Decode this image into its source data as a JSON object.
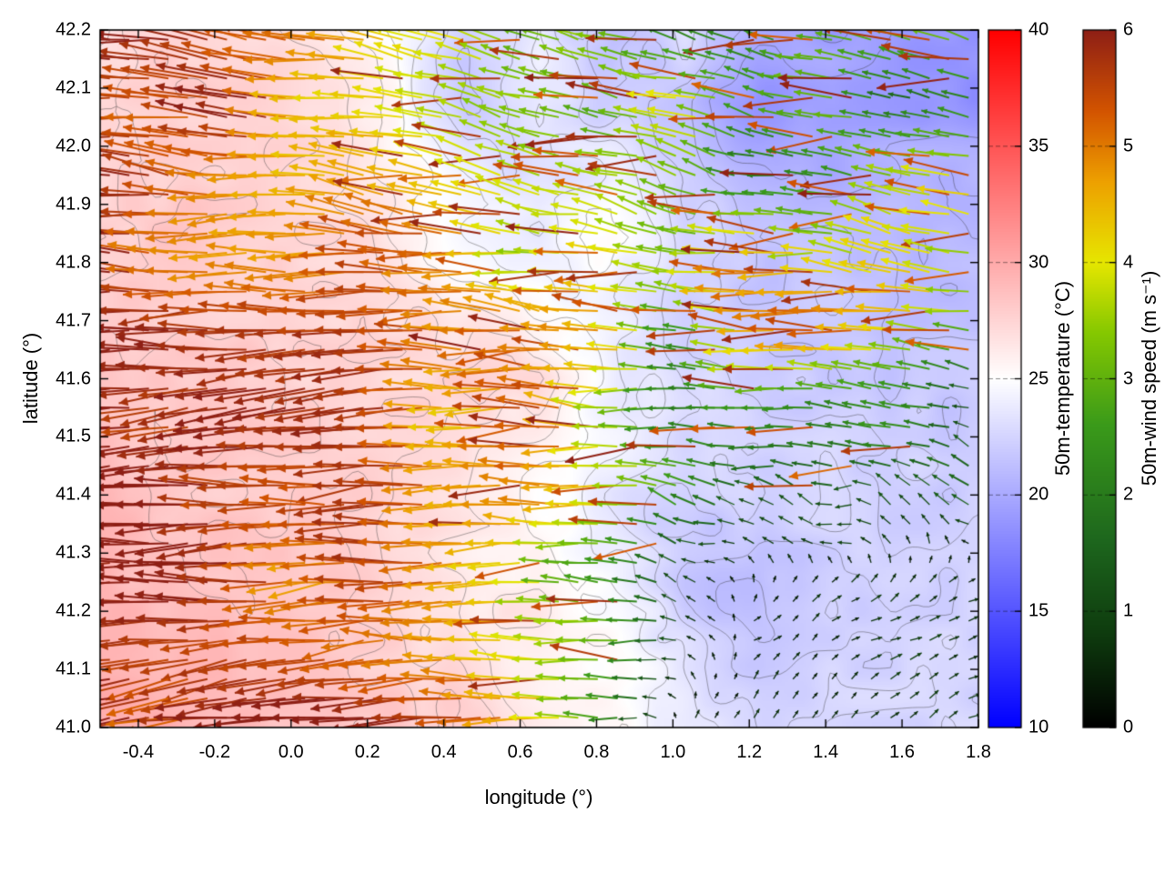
{
  "figure": {
    "background": "#ffffff"
  },
  "chart_data": {
    "type": "quiver",
    "description": "Wind vector field (arrows colored by 50m wind speed) over a 50m temperature heatmap with thin gray terrain contour lines",
    "xlabel": "longitude (°)",
    "ylabel": "latitude (°)",
    "x_range": [
      -0.5,
      1.8
    ],
    "y_range": [
      41.0,
      42.2
    ],
    "x_ticks": [
      -0.4,
      -0.2,
      0.0,
      0.2,
      0.4,
      0.6,
      0.8,
      1.0,
      1.2,
      1.4,
      1.6,
      1.8
    ],
    "y_ticks": [
      41.0,
      41.1,
      41.2,
      41.3,
      41.4,
      41.5,
      41.6,
      41.7,
      41.8,
      41.9,
      42.0,
      42.1,
      42.2
    ],
    "colorbars": [
      {
        "label": "50m-temperature (°C)",
        "range": [
          10,
          40
        ],
        "ticks": [
          10,
          15,
          20,
          25,
          30,
          35,
          40
        ],
        "stops": [
          [
            10,
            "#0000ff"
          ],
          [
            25,
            "#ffffff"
          ],
          [
            40,
            "#ff0000"
          ]
        ]
      },
      {
        "label": "50m-wind speed (m s⁻¹)",
        "range": [
          0,
          6
        ],
        "ticks": [
          0,
          1,
          2,
          3,
          4,
          5,
          6
        ],
        "stops": [
          [
            0,
            "#000000"
          ],
          [
            0.8,
            "#0e3b0e"
          ],
          [
            1.6,
            "#1d661d"
          ],
          [
            2.6,
            "#3a9a1a"
          ],
          [
            3.4,
            "#86c800"
          ],
          [
            4.0,
            "#e6e600"
          ],
          [
            4.7,
            "#eda000"
          ],
          [
            5.3,
            "#d35400"
          ],
          [
            6,
            "#8e1f15"
          ]
        ]
      }
    ],
    "temperature_grid": {
      "units": "°C",
      "rows_from_lat": 42.2,
      "rows_to_lat": 41.0,
      "cols_from_lon": -0.5,
      "cols_to_lon": 1.8,
      "values": [
        [
          27.0,
          27.5,
          27.0,
          26.5,
          25.0,
          22.0,
          24.0,
          21.0,
          23.0,
          20.0,
          19.0,
          18.5,
          19.0
        ],
        [
          27.5,
          28.0,
          27.5,
          26.5,
          25.5,
          21.5,
          23.5,
          22.0,
          21.0,
          19.0,
          20.0,
          19.0,
          18.5
        ],
        [
          28.0,
          28.0,
          27.5,
          27.0,
          26.0,
          24.0,
          22.5,
          24.0,
          22.0,
          21.0,
          20.0,
          21.0,
          20.5
        ],
        [
          28.0,
          28.5,
          28.0,
          27.0,
          26.5,
          25.0,
          24.5,
          25.0,
          23.0,
          22.0,
          21.5,
          21.0,
          21.0
        ],
        [
          28.0,
          28.0,
          27.5,
          27.5,
          27.0,
          26.0,
          25.5,
          24.0,
          22.5,
          22.0,
          22.0,
          21.5,
          21.5
        ],
        [
          28.5,
          28.0,
          28.0,
          27.5,
          27.0,
          27.5,
          26.5,
          24.0,
          23.0,
          22.5,
          22.0,
          22.0,
          22.0
        ],
        [
          28.5,
          28.5,
          28.0,
          28.0,
          27.5,
          27.0,
          25.5,
          24.5,
          23.0,
          22.5,
          22.5,
          22.5,
          22.0
        ],
        [
          29.0,
          28.5,
          28.5,
          28.0,
          27.5,
          26.5,
          25.5,
          24.0,
          22.0,
          21.5,
          22.5,
          22.5,
          22.5
        ],
        [
          29.0,
          29.0,
          28.5,
          28.0,
          27.5,
          26.5,
          26.0,
          24.5,
          21.5,
          21.0,
          22.5,
          22.5,
          22.5
        ],
        [
          29.5,
          29.0,
          29.0,
          28.5,
          27.5,
          27.0,
          26.0,
          25.0,
          23.0,
          22.0,
          22.5,
          22.5,
          22.5
        ],
        [
          29.5,
          29.5,
          29.0,
          28.5,
          28.0,
          27.5,
          26.5,
          25.5,
          23.5,
          22.5,
          22.5,
          22.5,
          22.5
        ]
      ]
    },
    "wind_grid": {
      "units": "m s⁻¹",
      "u": [
        [
          -5.6,
          -5.6,
          -5.4,
          -5.2,
          -4.5,
          -3.5,
          -3.0,
          -4.0,
          -2.5,
          -2.0,
          -2.8,
          -3.0,
          -2.5
        ],
        [
          -5.6,
          -5.6,
          -5.4,
          -5.0,
          -4.0,
          -3.2,
          -3.5,
          -3.0,
          -3.5,
          -2.5,
          -2.2,
          -2.0,
          -2.5
        ],
        [
          -5.7,
          -5.6,
          -5.5,
          -5.2,
          -4.5,
          -3.5,
          -3.0,
          -2.5,
          -3.0,
          -2.0,
          -2.5,
          -3.5,
          -3.0
        ],
        [
          -5.7,
          -5.7,
          -5.5,
          -5.3,
          -5.0,
          -4.0,
          -3.5,
          -3.0,
          -2.5,
          -3.5,
          -4.5,
          -4.0,
          -3.5
        ],
        [
          -5.7,
          -5.7,
          -5.6,
          -5.4,
          -5.0,
          -4.5,
          -3.8,
          -3.5,
          -3.0,
          -4.0,
          -5.0,
          -4.5,
          -4.0
        ],
        [
          -5.8,
          -5.7,
          -5.6,
          -5.5,
          -5.2,
          -5.0,
          -4.0,
          -3.5,
          -3.0,
          -3.5,
          -3.0,
          -2.5,
          -2.0
        ],
        [
          -5.8,
          -5.8,
          -5.7,
          -5.5,
          -5.3,
          -5.0,
          -4.5,
          -3.5,
          -2.5,
          -2.0,
          -2.5,
          -2.0,
          -1.5
        ],
        [
          -5.8,
          -5.8,
          -5.7,
          -5.6,
          -5.4,
          -5.0,
          -4.5,
          -3.0,
          -1.5,
          -1.0,
          -1.5,
          -1.0,
          -0.8
        ],
        [
          -5.9,
          -5.8,
          -5.8,
          -5.6,
          -5.4,
          -5.2,
          -4.5,
          -3.0,
          -1.0,
          0.3,
          0.5,
          0.5,
          0.6
        ],
        [
          -5.9,
          -5.9,
          -5.8,
          -5.7,
          -5.5,
          -5.0,
          -4.0,
          -2.5,
          -0.5,
          0.4,
          0.5,
          0.6,
          0.6
        ],
        [
          -5.9,
          -5.9,
          -5.8,
          -5.7,
          -5.5,
          -5.2,
          -4.5,
          -2.0,
          0.3,
          0.5,
          0.5,
          0.6,
          0.6
        ]
      ],
      "v": [
        [
          0.8,
          0.5,
          1.0,
          0.5,
          1.2,
          0.8,
          1.5,
          0.5,
          1.0,
          0.8,
          0.5,
          1.0,
          0.8
        ],
        [
          0.5,
          0.8,
          0.5,
          1.0,
          0.5,
          1.0,
          0.5,
          1.2,
          0.5,
          1.0,
          0.8,
          0.5,
          1.0
        ],
        [
          0.3,
          0.5,
          0.3,
          0.5,
          0.8,
          0.5,
          1.0,
          0.5,
          0.8,
          0.5,
          0.3,
          0.8,
          0.5
        ],
        [
          0.2,
          0.3,
          0.2,
          0.3,
          0.5,
          0.3,
          0.5,
          0.8,
          0.3,
          0.5,
          0.3,
          0.5,
          0.3
        ],
        [
          0.0,
          0.2,
          0.0,
          0.2,
          0.3,
          0.2,
          0.5,
          0.3,
          0.5,
          0.2,
          0.3,
          0.2,
          0.3
        ],
        [
          -0.2,
          0.0,
          -0.2,
          0.0,
          0.2,
          0.0,
          0.3,
          0.2,
          0.3,
          0.3,
          0.5,
          0.3,
          0.5
        ],
        [
          -0.3,
          -0.2,
          -0.3,
          -0.2,
          0.0,
          -0.2,
          0.2,
          0.3,
          0.5,
          0.3,
          0.5,
          0.5,
          0.5
        ],
        [
          -0.5,
          -0.3,
          -0.5,
          -0.3,
          -0.2,
          0.0,
          0.2,
          0.3,
          0.5,
          0.5,
          0.5,
          0.5,
          0.4
        ],
        [
          -0.5,
          -0.5,
          -0.3,
          -0.5,
          -0.2,
          -0.3,
          0.0,
          0.3,
          0.5,
          0.4,
          0.4,
          0.4,
          0.4
        ],
        [
          -0.8,
          -0.5,
          -0.8,
          -0.5,
          -0.3,
          -0.2,
          0.0,
          0.3,
          0.4,
          0.3,
          0.35,
          0.35,
          0.3
        ],
        [
          -0.8,
          -0.8,
          -0.5,
          -0.5,
          -0.3,
          -0.2,
          0.2,
          0.3,
          0.3,
          0.3,
          0.3,
          0.3,
          0.3
        ]
      ]
    },
    "overlays": {
      "contours": {
        "color": "#323232",
        "levels": [
          20,
          21,
          22,
          23,
          24,
          25,
          26,
          27,
          28
        ]
      }
    }
  }
}
